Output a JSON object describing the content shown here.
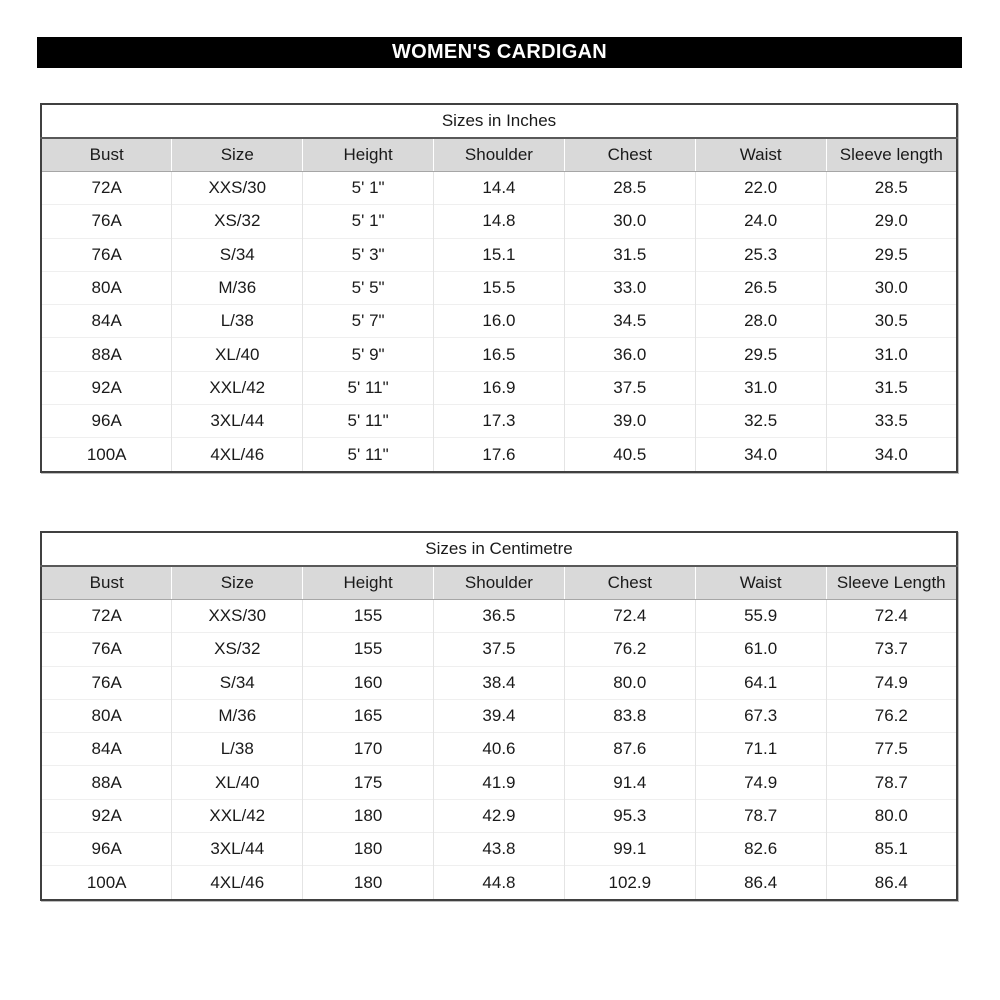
{
  "page_title": "WOMEN'S CARDIGAN",
  "colors": {
    "title_bar_bg": "#000000",
    "title_bar_text": "#ffffff",
    "header_row_bg": "#d9d9d9",
    "table_border": "#404040",
    "body_text": "#1a1a1a",
    "page_bg": "#ffffff"
  },
  "tables": [
    {
      "title": "Sizes in Inches",
      "headers": [
        "Bust",
        "Size",
        "Height",
        "Shoulder",
        "Chest",
        "Waist",
        "Sleeve length"
      ],
      "rows": [
        [
          "72A",
          "XXS/30",
          "5' 1\"",
          "14.4",
          "28.5",
          "22.0",
          "28.5"
        ],
        [
          "76A",
          "XS/32",
          "5' 1\"",
          "14.8",
          "30.0",
          "24.0",
          "29.0"
        ],
        [
          "76A",
          "S/34",
          "5' 3\"",
          "15.1",
          "31.5",
          "25.3",
          "29.5"
        ],
        [
          "80A",
          "M/36",
          "5' 5\"",
          "15.5",
          "33.0",
          "26.5",
          "30.0"
        ],
        [
          "84A",
          "L/38",
          "5' 7\"",
          "16.0",
          "34.5",
          "28.0",
          "30.5"
        ],
        [
          "88A",
          "XL/40",
          "5' 9\"",
          "16.5",
          "36.0",
          "29.5",
          "31.0"
        ],
        [
          "92A",
          "XXL/42",
          "5' 11\"",
          "16.9",
          "37.5",
          "31.0",
          "31.5"
        ],
        [
          "96A",
          "3XL/44",
          "5' 11\"",
          "17.3",
          "39.0",
          "32.5",
          "33.5"
        ],
        [
          "100A",
          "4XL/46",
          "5' 11\"",
          "17.6",
          "40.5",
          "34.0",
          "34.0"
        ]
      ]
    },
    {
      "title": "Sizes in Centimetre",
      "headers": [
        "Bust",
        "Size",
        "Height",
        "Shoulder",
        "Chest",
        "Waist",
        "Sleeve Length"
      ],
      "rows": [
        [
          "72A",
          "XXS/30",
          "155",
          "36.5",
          "72.4",
          "55.9",
          "72.4"
        ],
        [
          "76A",
          "XS/32",
          "155",
          "37.5",
          "76.2",
          "61.0",
          "73.7"
        ],
        [
          "76A",
          "S/34",
          "160",
          "38.4",
          "80.0",
          "64.1",
          "74.9"
        ],
        [
          "80A",
          "M/36",
          "165",
          "39.4",
          "83.8",
          "67.3",
          "76.2"
        ],
        [
          "84A",
          "L/38",
          "170",
          "40.6",
          "87.6",
          "71.1",
          "77.5"
        ],
        [
          "88A",
          "XL/40",
          "175",
          "41.9",
          "91.4",
          "74.9",
          "78.7"
        ],
        [
          "92A",
          "XXL/42",
          "180",
          "42.9",
          "95.3",
          "78.7",
          "80.0"
        ],
        [
          "96A",
          "3XL/44",
          "180",
          "43.8",
          "99.1",
          "82.6",
          "85.1"
        ],
        [
          "100A",
          "4XL/46",
          "180",
          "44.8",
          "102.9",
          "86.4",
          "86.4"
        ]
      ]
    }
  ]
}
